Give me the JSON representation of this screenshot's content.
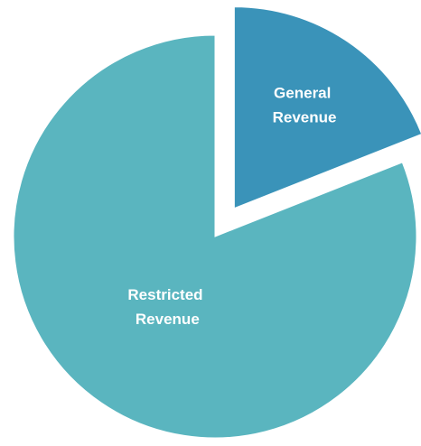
{
  "chart_data": {
    "type": "pie",
    "categories": [
      "General Revenue",
      "Restricted Revenue"
    ],
    "values": [
      19,
      81
    ],
    "colors": [
      "#3a93b9",
      "#5ab5bf"
    ],
    "exploded": [
      true,
      false
    ],
    "start_angle": 0,
    "legend": false
  }
}
